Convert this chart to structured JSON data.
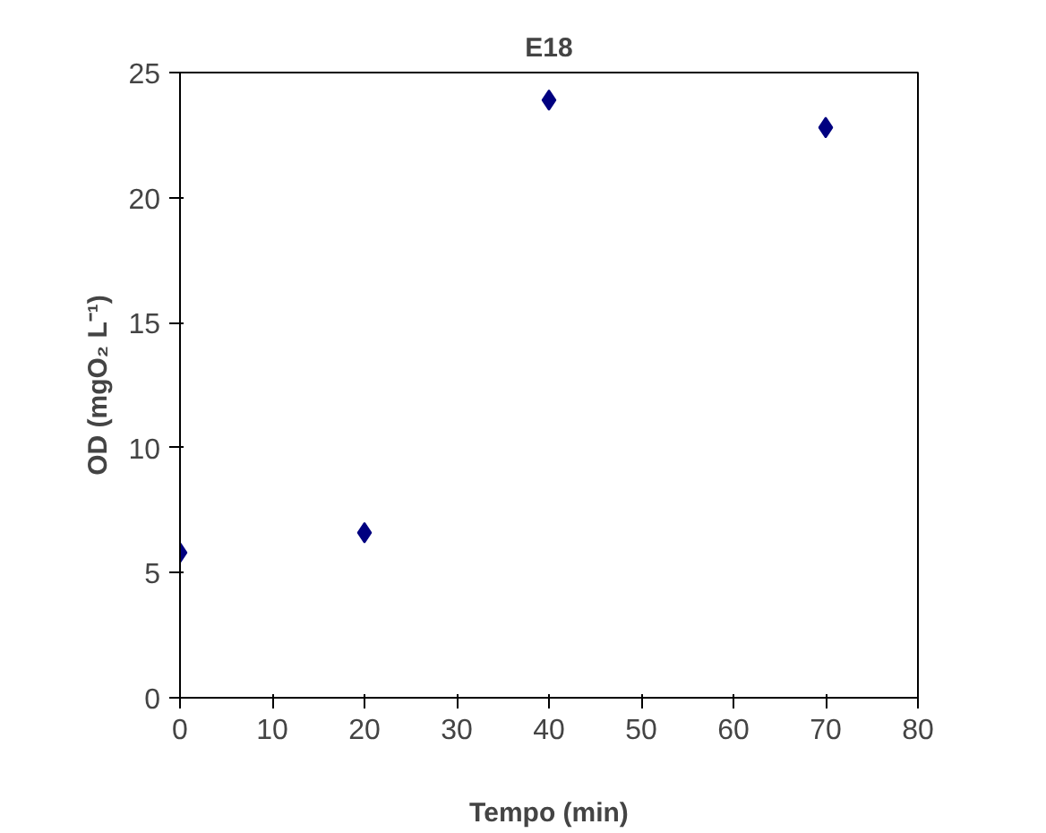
{
  "chart_data": {
    "type": "scatter",
    "title": "E18",
    "xlabel": "Tempo (min)",
    "ylabel": "OD (mgO₂ L⁻¹)",
    "x": [
      0,
      20,
      40,
      70
    ],
    "series": [
      {
        "color": "#000080",
        "values": [
          5.8,
          6.6,
          23.9,
          22.8
        ]
      }
    ],
    "xlim": [
      0,
      80
    ],
    "xticks": [
      0,
      10,
      20,
      30,
      40,
      50,
      60,
      70,
      80
    ],
    "ylim": [
      0,
      25
    ],
    "yticks": [
      0,
      5,
      10,
      15,
      20,
      25
    ],
    "grid": false,
    "marker": "diamond"
  }
}
